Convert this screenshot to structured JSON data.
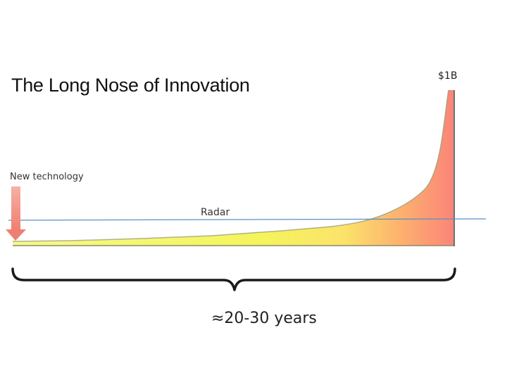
{
  "title": "The Long Nose of Innovation",
  "labels": {
    "peak": "$1B",
    "new_technology": "New technology",
    "radar": "Radar",
    "timespan": "≈20-30 years"
  }
}
